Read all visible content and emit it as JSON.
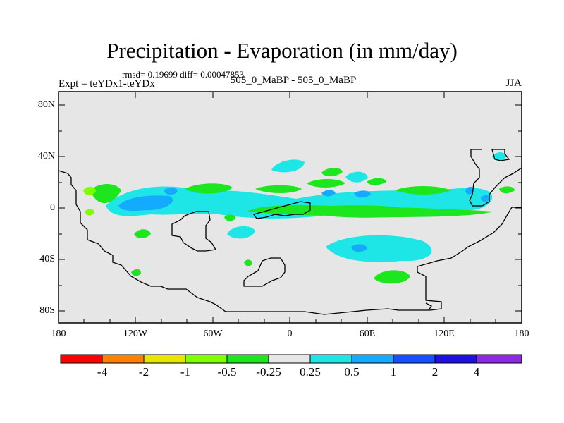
{
  "title": "Precipitation - Evaporation (in mm/day)",
  "stats": "rmsd= 0.19699 diff= 0.00047853",
  "left_label": "Expt = teYDx1-teYDx",
  "center_label": "505_0_MaBP - 505_0_MaBP",
  "right_label": "JJA",
  "y_ticks": [
    "80N",
    "40N",
    "0",
    "40S",
    "80S"
  ],
  "x_ticks": [
    "180",
    "120W",
    "60W",
    "0",
    "60E",
    "120E",
    "180"
  ],
  "colorbar": {
    "labels": [
      "-4",
      "-2",
      "-1",
      "-0.5",
      "-0.25",
      "0.25",
      "0.5",
      "1",
      "2",
      "4"
    ],
    "colors": [
      "#ff0000",
      "#ff8000",
      "#e6e600",
      "#80ff00",
      "#1ee61e",
      "#e6e6e6",
      "#1ee6e6",
      "#14aaff",
      "#1450ff",
      "#2010e0",
      "#8c28e6"
    ]
  },
  "colors": {
    "background": "#e6e6e6",
    "cyan": "#1ee6e6",
    "blue": "#14aaff",
    "green": "#1ee61e",
    "yellow_green": "#80ff00"
  }
}
